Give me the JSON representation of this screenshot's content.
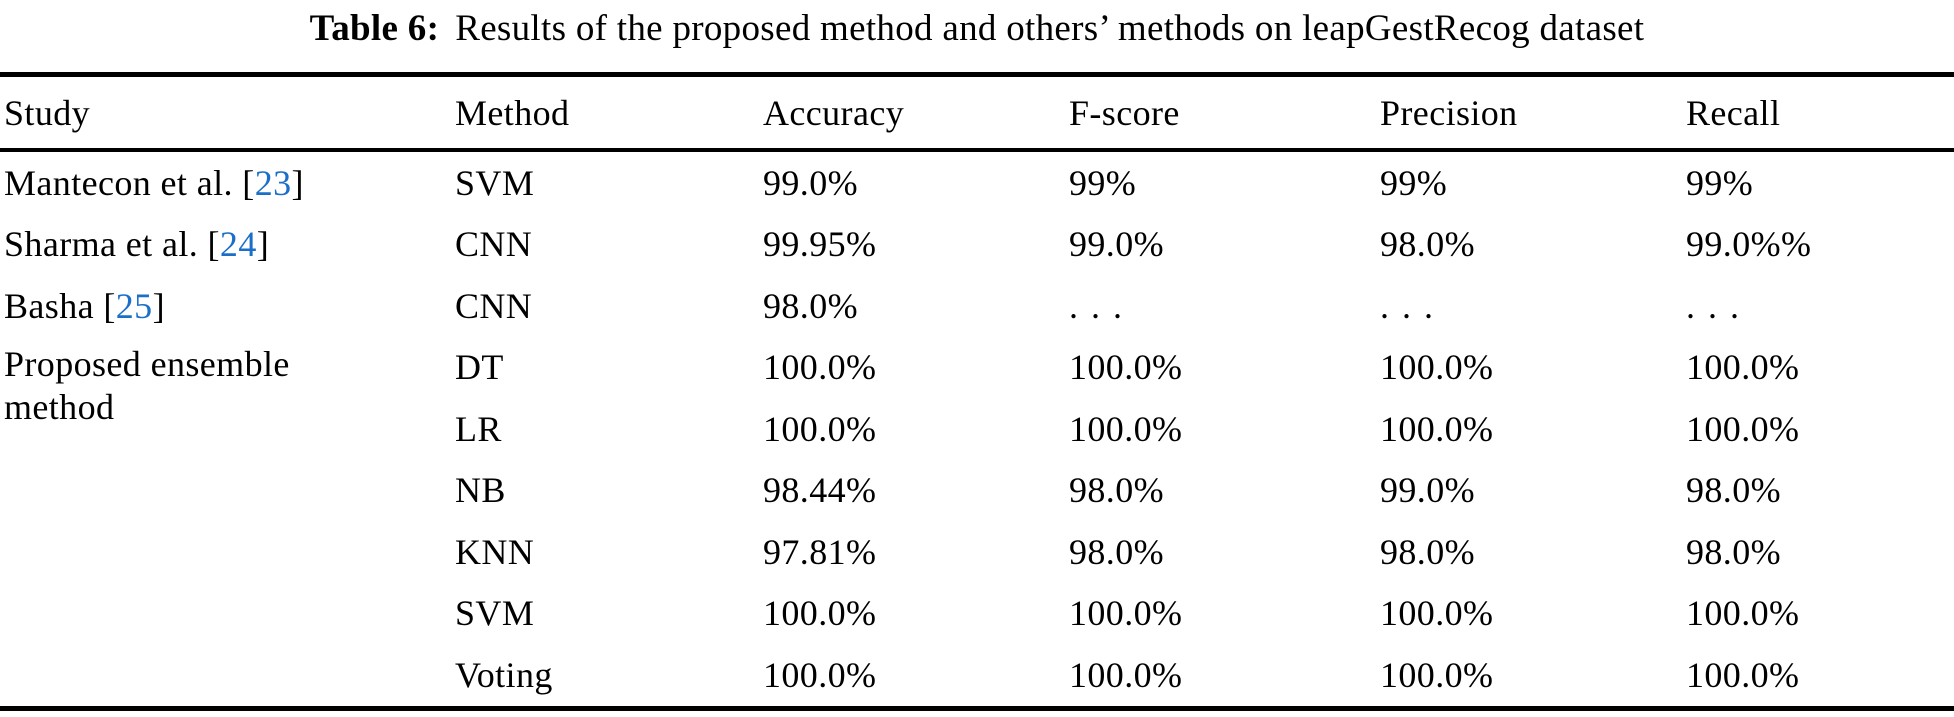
{
  "caption": {
    "label": "Table 6:",
    "text": "Results of the proposed method and others’ methods on leapGestRecog dataset"
  },
  "colors": {
    "citation_link": "#1b6fc8",
    "text": "#000000",
    "rule": "#000000",
    "background": "#ffffff"
  },
  "table": {
    "columns": [
      "Study",
      "Method",
      "Accuracy",
      "F-score",
      "Precision",
      "Recall"
    ],
    "rows": [
      {
        "study_prefix": "Mantecon et al. [",
        "study_cite": "23",
        "study_suffix": "]",
        "method": "SVM",
        "accuracy": "99.0%",
        "f_score": "99%",
        "precision": "99%",
        "recall": "99%"
      },
      {
        "study_prefix": "Sharma et al. [",
        "study_cite": "24",
        "study_suffix": "]",
        "method": "CNN",
        "accuracy": "99.95%",
        "f_score": "99.0%",
        "precision": "98.0%",
        "recall": "99.0%%"
      },
      {
        "study_prefix": "Basha [",
        "study_cite": "25",
        "study_suffix": "]",
        "method": "CNN",
        "accuracy": "98.0%",
        "f_score": ". . .",
        "precision": ". . .",
        "recall": ". . ."
      },
      {
        "method": "DT",
        "accuracy": "100.0%",
        "f_score": "100.0%",
        "precision": "100.0%",
        "recall": "100.0%"
      },
      {
        "method": "LR",
        "accuracy": "100.0%",
        "f_score": "100.0%",
        "precision": "100.0%",
        "recall": "100.0%"
      },
      {
        "method": "NB",
        "accuracy": "98.44%",
        "f_score": "98.0%",
        "precision": "99.0%",
        "recall": "98.0%"
      },
      {
        "method": "KNN",
        "accuracy": "97.81%",
        "f_score": "98.0%",
        "precision": "98.0%",
        "recall": "98.0%"
      },
      {
        "method": "SVM",
        "accuracy": "100.0%",
        "f_score": "100.0%",
        "precision": "100.0%",
        "recall": "100.0%"
      },
      {
        "method": "Voting",
        "accuracy": "100.0%",
        "f_score": "100.0%",
        "precision": "100.0%",
        "recall": "100.0%"
      }
    ],
    "proposed_group_study": {
      "line1": "Proposed ensemble",
      "line2": "method"
    }
  }
}
